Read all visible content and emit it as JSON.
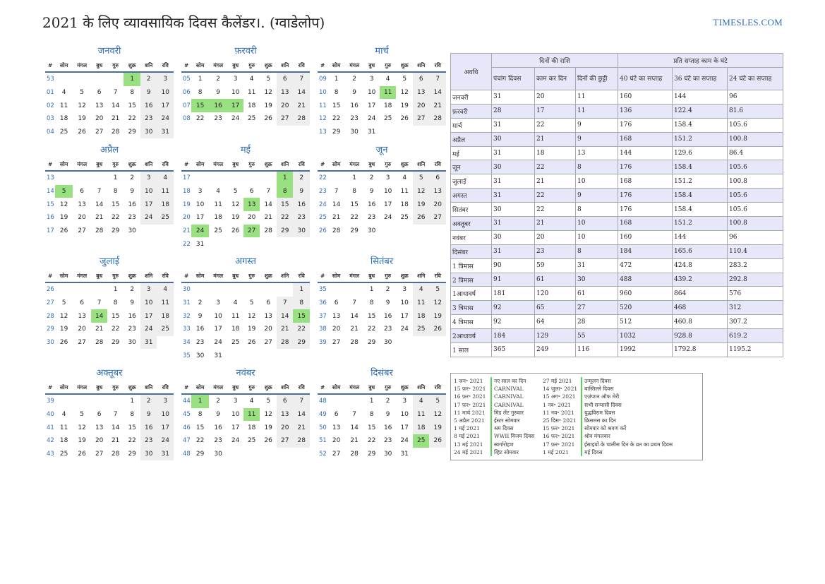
{
  "header": {
    "title": "2021 के लिए व्यावसायिक दिवस कैलेंडर।. (ग्वाडेलोप)",
    "brand": "TIMESLES.COM"
  },
  "weekday_headers": [
    "#",
    "सोम",
    "मंगल",
    "बुध",
    "गुरु",
    "शुक्र",
    "शनि",
    "रवि"
  ],
  "months": [
    {
      "name": "जनवरी",
      "weeks": [
        {
          "wk": "53",
          "days": [
            "",
            "",
            "",
            "",
            "1",
            "2",
            "3"
          ]
        },
        {
          "wk": "01",
          "days": [
            "4",
            "5",
            "6",
            "7",
            "8",
            "9",
            "10"
          ]
        },
        {
          "wk": "02",
          "days": [
            "11",
            "12",
            "13",
            "14",
            "15",
            "16",
            "17"
          ]
        },
        {
          "wk": "03",
          "days": [
            "18",
            "19",
            "20",
            "21",
            "22",
            "23",
            "24"
          ]
        },
        {
          "wk": "04",
          "days": [
            "25",
            "26",
            "27",
            "28",
            "29",
            "30",
            "31"
          ]
        }
      ],
      "holidays": [
        "1"
      ]
    },
    {
      "name": "फ़रवरी",
      "weeks": [
        {
          "wk": "05",
          "days": [
            "1",
            "2",
            "3",
            "4",
            "5",
            "6",
            "7"
          ]
        },
        {
          "wk": "06",
          "days": [
            "8",
            "9",
            "10",
            "11",
            "12",
            "13",
            "14"
          ]
        },
        {
          "wk": "07",
          "days": [
            "15",
            "16",
            "17",
            "18",
            "19",
            "20",
            "21"
          ]
        },
        {
          "wk": "08",
          "days": [
            "22",
            "23",
            "24",
            "25",
            "26",
            "27",
            "28"
          ]
        }
      ],
      "holidays": [
        "15",
        "16",
        "17"
      ]
    },
    {
      "name": "मार्च",
      "weeks": [
        {
          "wk": "09",
          "days": [
            "1",
            "2",
            "3",
            "4",
            "5",
            "6",
            "7"
          ]
        },
        {
          "wk": "10",
          "days": [
            "8",
            "9",
            "10",
            "11",
            "12",
            "13",
            "14"
          ]
        },
        {
          "wk": "11",
          "days": [
            "15",
            "16",
            "17",
            "18",
            "19",
            "20",
            "21"
          ]
        },
        {
          "wk": "12",
          "days": [
            "22",
            "23",
            "24",
            "25",
            "26",
            "27",
            "28"
          ]
        },
        {
          "wk": "13",
          "days": [
            "29",
            "30",
            "31",
            "",
            "",
            "",
            ""
          ]
        }
      ],
      "holidays": [
        "11"
      ]
    },
    {
      "name": "अप्रैल",
      "weeks": [
        {
          "wk": "13",
          "days": [
            "",
            "",
            "",
            "1",
            "2",
            "3",
            "4"
          ]
        },
        {
          "wk": "14",
          "days": [
            "5",
            "6",
            "7",
            "8",
            "9",
            "10",
            "11"
          ]
        },
        {
          "wk": "15",
          "days": [
            "12",
            "13",
            "14",
            "15",
            "16",
            "17",
            "18"
          ]
        },
        {
          "wk": "16",
          "days": [
            "19",
            "20",
            "21",
            "22",
            "23",
            "24",
            "25"
          ]
        },
        {
          "wk": "17",
          "days": [
            "26",
            "27",
            "28",
            "29",
            "30",
            "",
            ""
          ]
        }
      ],
      "holidays": [
        "5"
      ]
    },
    {
      "name": "मई",
      "weeks": [
        {
          "wk": "17",
          "days": [
            "",
            "",
            "",
            "",
            "",
            "1",
            "2"
          ]
        },
        {
          "wk": "18",
          "days": [
            "3",
            "4",
            "5",
            "6",
            "7",
            "8",
            "9"
          ]
        },
        {
          "wk": "19",
          "days": [
            "10",
            "11",
            "12",
            "13",
            "14",
            "15",
            "16"
          ]
        },
        {
          "wk": "20",
          "days": [
            "17",
            "18",
            "19",
            "20",
            "21",
            "22",
            "23"
          ]
        },
        {
          "wk": "21",
          "days": [
            "24",
            "25",
            "26",
            "27",
            "28",
            "29",
            "30"
          ]
        },
        {
          "wk": "22",
          "days": [
            "31",
            "",
            "",
            "",
            "",
            "",
            ""
          ]
        }
      ],
      "holidays": [
        "1",
        "8",
        "13",
        "24",
        "27"
      ]
    },
    {
      "name": "जून",
      "weeks": [
        {
          "wk": "22",
          "days": [
            "",
            "1",
            "2",
            "3",
            "4",
            "5",
            "6"
          ]
        },
        {
          "wk": "23",
          "days": [
            "7",
            "8",
            "9",
            "10",
            "11",
            "12",
            "13"
          ]
        },
        {
          "wk": "24",
          "days": [
            "14",
            "15",
            "16",
            "17",
            "18",
            "19",
            "20"
          ]
        },
        {
          "wk": "25",
          "days": [
            "21",
            "22",
            "23",
            "24",
            "25",
            "26",
            "27"
          ]
        },
        {
          "wk": "26",
          "days": [
            "28",
            "29",
            "30",
            "",
            "",
            "",
            ""
          ]
        }
      ],
      "holidays": []
    },
    {
      "name": "जुलाई",
      "weeks": [
        {
          "wk": "26",
          "days": [
            "",
            "",
            "",
            "1",
            "2",
            "3",
            "4"
          ]
        },
        {
          "wk": "27",
          "days": [
            "5",
            "6",
            "7",
            "8",
            "9",
            "10",
            "11"
          ]
        },
        {
          "wk": "28",
          "days": [
            "12",
            "13",
            "14",
            "15",
            "16",
            "17",
            "18"
          ]
        },
        {
          "wk": "29",
          "days": [
            "19",
            "20",
            "21",
            "22",
            "23",
            "24",
            "25"
          ]
        },
        {
          "wk": "30",
          "days": [
            "26",
            "27",
            "28",
            "29",
            "30",
            "31",
            ""
          ]
        }
      ],
      "holidays": [
        "14"
      ]
    },
    {
      "name": "अगस्त",
      "weeks": [
        {
          "wk": "30",
          "days": [
            "",
            "",
            "",
            "",
            "",
            "",
            "1"
          ]
        },
        {
          "wk": "31",
          "days": [
            "2",
            "3",
            "4",
            "5",
            "6",
            "7",
            "8"
          ]
        },
        {
          "wk": "32",
          "days": [
            "9",
            "10",
            "11",
            "12",
            "13",
            "14",
            "15"
          ]
        },
        {
          "wk": "33",
          "days": [
            "16",
            "17",
            "18",
            "19",
            "20",
            "21",
            "22"
          ]
        },
        {
          "wk": "34",
          "days": [
            "23",
            "24",
            "25",
            "26",
            "27",
            "28",
            "29"
          ]
        },
        {
          "wk": "35",
          "days": [
            "30",
            "31",
            "",
            "",
            "",
            "",
            ""
          ]
        }
      ],
      "holidays": [
        "15"
      ]
    },
    {
      "name": "सितंबर",
      "weeks": [
        {
          "wk": "35",
          "days": [
            "",
            "",
            "1",
            "2",
            "3",
            "4",
            "5"
          ]
        },
        {
          "wk": "36",
          "days": [
            "6",
            "7",
            "8",
            "9",
            "10",
            "11",
            "12"
          ]
        },
        {
          "wk": "37",
          "days": [
            "13",
            "14",
            "15",
            "16",
            "17",
            "18",
            "19"
          ]
        },
        {
          "wk": "38",
          "days": [
            "20",
            "21",
            "22",
            "23",
            "24",
            "25",
            "26"
          ]
        },
        {
          "wk": "39",
          "days": [
            "27",
            "28",
            "29",
            "30",
            "",
            "",
            ""
          ]
        }
      ],
      "holidays": []
    },
    {
      "name": "अक्तूबर",
      "weeks": [
        {
          "wk": "39",
          "days": [
            "",
            "",
            "",
            "",
            "1",
            "2",
            "3"
          ]
        },
        {
          "wk": "40",
          "days": [
            "4",
            "5",
            "6",
            "7",
            "8",
            "9",
            "10"
          ]
        },
        {
          "wk": "41",
          "days": [
            "11",
            "12",
            "13",
            "14",
            "15",
            "16",
            "17"
          ]
        },
        {
          "wk": "42",
          "days": [
            "18",
            "19",
            "20",
            "21",
            "22",
            "23",
            "24"
          ]
        },
        {
          "wk": "43",
          "days": [
            "25",
            "26",
            "27",
            "28",
            "29",
            "30",
            "31"
          ]
        }
      ],
      "holidays": []
    },
    {
      "name": "नवंबर",
      "weeks": [
        {
          "wk": "44",
          "days": [
            "1",
            "2",
            "3",
            "4",
            "5",
            "6",
            "7"
          ]
        },
        {
          "wk": "45",
          "days": [
            "8",
            "9",
            "10",
            "11",
            "12",
            "13",
            "14"
          ]
        },
        {
          "wk": "46",
          "days": [
            "15",
            "16",
            "17",
            "18",
            "19",
            "20",
            "21"
          ]
        },
        {
          "wk": "47",
          "days": [
            "22",
            "23",
            "24",
            "25",
            "26",
            "27",
            "28"
          ]
        },
        {
          "wk": "48",
          "days": [
            "29",
            "30",
            "",
            "",
            "",
            "",
            ""
          ]
        }
      ],
      "holidays": [
        "1",
        "11"
      ]
    },
    {
      "name": "दिसंबर",
      "weeks": [
        {
          "wk": "48",
          "days": [
            "",
            "",
            "1",
            "2",
            "3",
            "4",
            "5"
          ]
        },
        {
          "wk": "49",
          "days": [
            "6",
            "7",
            "8",
            "9",
            "10",
            "11",
            "12"
          ]
        },
        {
          "wk": "50",
          "days": [
            "13",
            "14",
            "15",
            "16",
            "17",
            "18",
            "19"
          ]
        },
        {
          "wk": "51",
          "days": [
            "20",
            "21",
            "22",
            "23",
            "24",
            "25",
            "26"
          ]
        },
        {
          "wk": "52",
          "days": [
            "27",
            "28",
            "29",
            "30",
            "31",
            "",
            ""
          ]
        }
      ],
      "holidays": [
        "25"
      ]
    }
  ],
  "summary": {
    "period_header": "अवधि",
    "group1": "दिनों की राशि",
    "group2": "प्रति सप्ताह काम के घंटे",
    "columns": [
      "पंचांग दिवस",
      "काम कर दिन",
      "दिनों की छुट्टी",
      "40 घंटे का सप्ताह",
      "36 घंटे का सप्ताह",
      "24 घंटे का सप्ताह"
    ],
    "rows": [
      [
        "जनवरी",
        "31",
        "20",
        "11",
        "160",
        "144",
        "96"
      ],
      [
        "फ़रवरी",
        "28",
        "17",
        "11",
        "136",
        "122.4",
        "81.6"
      ],
      [
        "मार्च",
        "31",
        "22",
        "9",
        "176",
        "158.4",
        "105.6"
      ],
      [
        "अप्रैल",
        "30",
        "21",
        "9",
        "168",
        "151.2",
        "100.8"
      ],
      [
        "मई",
        "31",
        "18",
        "13",
        "144",
        "129.6",
        "86.4"
      ],
      [
        "जून",
        "30",
        "22",
        "8",
        "176",
        "158.4",
        "105.6"
      ],
      [
        "जुलाई",
        "31",
        "21",
        "10",
        "168",
        "151.2",
        "100.8"
      ],
      [
        "अगस्त",
        "31",
        "22",
        "9",
        "176",
        "158.4",
        "105.6"
      ],
      [
        "सितंबर",
        "30",
        "22",
        "8",
        "176",
        "158.4",
        "105.6"
      ],
      [
        "अक्तूबर",
        "31",
        "21",
        "10",
        "168",
        "151.2",
        "100.8"
      ],
      [
        "नवंबर",
        "30",
        "20",
        "10",
        "160",
        "144",
        "96"
      ],
      [
        "दिसंबर",
        "31",
        "23",
        "8",
        "184",
        "165.6",
        "110.4"
      ],
      [
        "1 त्रिमास",
        "90",
        "59",
        "31",
        "472",
        "424.8",
        "283.2"
      ],
      [
        "2 त्रिमास",
        "91",
        "61",
        "30",
        "488",
        "439.2",
        "292.8"
      ],
      [
        "1आधावर्ष",
        "181",
        "120",
        "61",
        "960",
        "864",
        "576"
      ],
      [
        "3 त्रिमास",
        "92",
        "65",
        "27",
        "520",
        "468",
        "312"
      ],
      [
        "4 त्रिमास",
        "92",
        "64",
        "28",
        "512",
        "460.8",
        "307.2"
      ],
      [
        "2आधावर्ष",
        "184",
        "129",
        "55",
        "1032",
        "928.8",
        "619.2"
      ],
      [
        "1 साल",
        "365",
        "249",
        "116",
        "1992",
        "1792.8",
        "1195.2"
      ]
    ]
  },
  "holidays_left": [
    {
      "date": "1 जन॰ 2021",
      "name": "नए साल का दिन"
    },
    {
      "date": "15 फ़र॰ 2021",
      "name": "CARNIVAL"
    },
    {
      "date": "16 फ़र॰ 2021",
      "name": "CARNIVAL"
    },
    {
      "date": "17 फ़र॰ 2021",
      "name": "CARNIVAL"
    },
    {
      "date": "11 मार्च 2021",
      "name": "मिड लेंट गुरुवार"
    },
    {
      "date": "5 अप्रैल 2021",
      "name": "ईस्टर सोमवार"
    },
    {
      "date": "1 मई 2021",
      "name": "श्रम दिवस"
    },
    {
      "date": "8 मई 2021",
      "name": "WWII विजय दिवस"
    },
    {
      "date": "13 मई 2021",
      "name": "स्वर्गारोहण"
    },
    {
      "date": "24 मई 2021",
      "name": "व्हिट सोमवार"
    }
  ],
  "holidays_right": [
    {
      "date": "27 मई 2021",
      "name": "उन्मूलन दिवस"
    },
    {
      "date": "14 जुला॰ 2021",
      "name": "बास्तिल्ले दिवस"
    },
    {
      "date": "15 अग॰ 2021",
      "name": "एज़ंप्शन ऑफ मेरी"
    },
    {
      "date": "1 नव॰ 2021",
      "name": "सभी सन्यासी दिवस"
    },
    {
      "date": "11 नव॰ 2021",
      "name": "युद्धविराम दिवस"
    },
    {
      "date": "25 दिस॰ 2021",
      "name": "क्रिसमस का दिन"
    },
    {
      "date": "15 फ़र॰ 2021",
      "name": "सोमवार को श्रवण करें"
    },
    {
      "date": "16 फ़र॰ 2021",
      "name": "श्रोव मंगलवार"
    },
    {
      "date": "17 फ़र॰ 2021",
      "name": "ईसाइयों के चालीस दिन के व्रत का प्रथम दिवस"
    },
    {
      "date": "1 मई 2021",
      "name": "मई दिवस"
    }
  ]
}
